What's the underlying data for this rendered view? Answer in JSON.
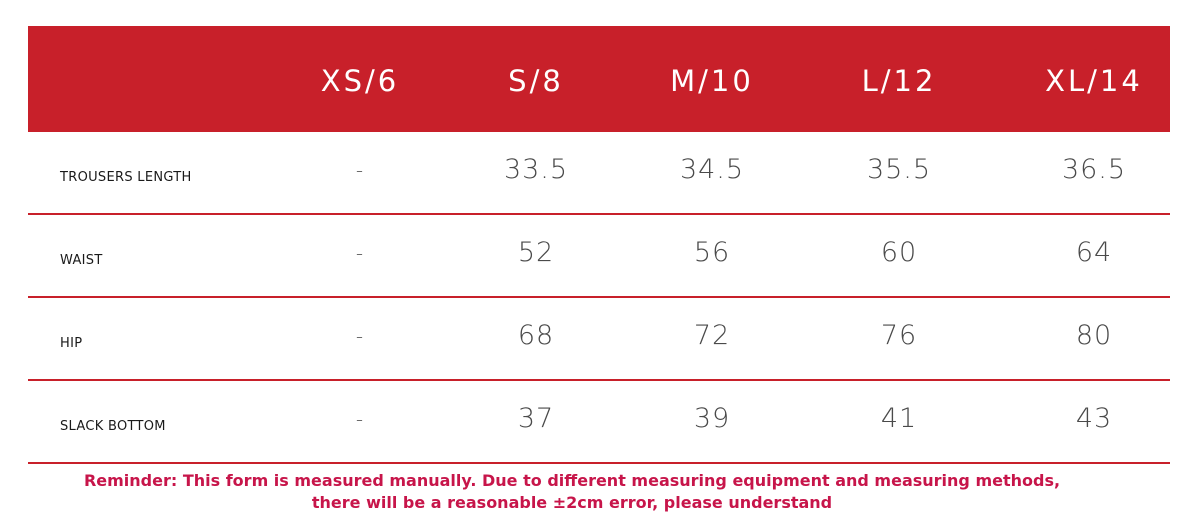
{
  "table": {
    "headers": [
      "XS/6",
      "S/8",
      "M/10",
      "L/12",
      "XL/14"
    ],
    "rows": [
      {
        "label": "TROUSERS LENGTH",
        "values": [
          "-",
          "33.5",
          "34.5",
          "35.5",
          "36.5"
        ]
      },
      {
        "label": "WAIST",
        "values": [
          "-",
          "52",
          "56",
          "60",
          "64"
        ]
      },
      {
        "label": "HIP",
        "values": [
          "-",
          "68",
          "72",
          "76",
          "80"
        ]
      },
      {
        "label": "SLACK BOTTOM",
        "values": [
          "-",
          "37",
          "39",
          "41",
          "43"
        ]
      }
    ]
  },
  "reminder": {
    "line1": "Reminder: This form is measured manually. Due to different measuring equipment and measuring methods,",
    "line2": "there will be a reasonable ±2cm error, please understand"
  },
  "colors": {
    "header_bg": "#c8202a",
    "divider": "#c8202a",
    "reminder_text": "#c7154a"
  }
}
